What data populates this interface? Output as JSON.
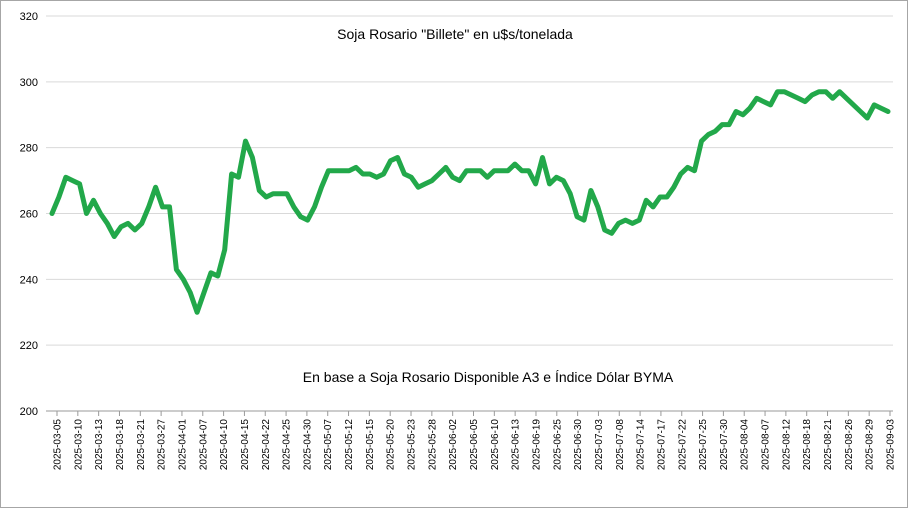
{
  "chart_data": {
    "type": "line",
    "title": "Soja Rosario \"Billete\" en u$s/tonelada",
    "annotation": "En base a Soja Rosario Disponible A3 e Índice Dólar BYMA",
    "xlabel": "",
    "ylabel": "",
    "ylim": [
      200,
      320
    ],
    "yticks": [
      200,
      220,
      240,
      260,
      280,
      300,
      320
    ],
    "grid": "horizontal",
    "legend": "none",
    "line_color": "#22a84a",
    "x_tick_labels": [
      "2025-03-05",
      "2025-03-10",
      "2025-03-13",
      "2025-03-18",
      "2025-03-21",
      "2025-03-27",
      "2025-04-01",
      "2025-04-07",
      "2025-04-10",
      "2025-04-15",
      "2025-04-22",
      "2025-04-25",
      "2025-04-30",
      "2025-05-07",
      "2025-05-12",
      "2025-05-15",
      "2025-05-20",
      "2025-05-23",
      "2025-05-28",
      "2025-06-02",
      "2025-06-05",
      "2025-06-10",
      "2025-06-13",
      "2025-06-19",
      "2025-06-25",
      "2025-06-30",
      "2025-07-03",
      "2025-07-08",
      "2025-07-14",
      "2025-07-17",
      "2025-07-22",
      "2025-07-25",
      "2025-07-30",
      "2025-08-04",
      "2025-08-07",
      "2025-08-12",
      "2025-08-18",
      "2025-08-21",
      "2025-08-26",
      "2025-08-29",
      "2025-09-03"
    ],
    "series": [
      {
        "values": [
          260,
          265,
          271,
          270,
          269,
          260,
          264,
          260,
          257,
          253,
          256,
          257,
          255,
          257,
          262,
          268,
          262,
          262,
          243,
          240,
          236,
          230,
          236,
          242,
          241,
          249,
          272,
          271,
          282,
          277,
          267,
          265,
          266,
          266,
          266,
          262,
          259,
          258,
          262,
          268,
          273,
          273,
          273,
          273,
          274,
          272,
          272,
          271,
          272,
          276,
          277,
          272,
          271,
          268,
          269,
          270,
          272,
          274,
          271,
          270,
          273,
          273,
          273,
          271,
          273,
          273,
          273,
          275,
          273,
          273,
          269,
          277,
          269,
          271,
          270,
          266,
          259,
          258,
          267,
          262,
          255,
          254,
          257,
          258,
          257,
          258,
          264,
          262,
          265,
          265,
          268,
          272,
          274,
          273,
          282,
          284,
          285,
          287,
          287,
          291,
          290,
          292,
          295,
          294,
          293,
          297,
          297,
          296,
          295,
          294,
          296,
          297,
          297,
          295,
          297,
          295,
          293,
          291,
          289,
          293,
          292,
          291
        ]
      }
    ]
  }
}
